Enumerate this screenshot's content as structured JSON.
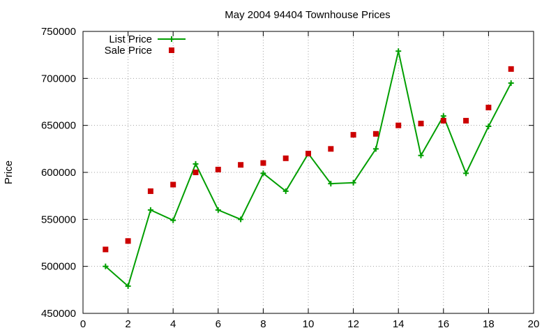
{
  "chart_data": {
    "type": "line",
    "title": "May 2004 94404 Townhouse Prices",
    "xlabel": "",
    "ylabel": "Price",
    "xlim": [
      0,
      20
    ],
    "ylim": [
      450000,
      750000
    ],
    "xticks": [
      0,
      2,
      4,
      6,
      8,
      10,
      12,
      14,
      16,
      18,
      20
    ],
    "yticks": [
      450000,
      500000,
      550000,
      600000,
      650000,
      700000,
      750000
    ],
    "grid": true,
    "legend_position": "top-left",
    "series": [
      {
        "name": "List Price",
        "style": "line-plus",
        "color": "#009e00",
        "x": [
          1,
          2,
          3,
          4,
          5,
          6,
          7,
          8,
          9,
          10,
          11,
          12,
          13,
          14,
          15,
          16,
          17,
          18,
          19
        ],
        "y": [
          500000,
          479000,
          560000,
          549000,
          609000,
          560000,
          550000,
          599000,
          580000,
          620000,
          588000,
          589000,
          625000,
          729000,
          618000,
          660000,
          599000,
          649000,
          695000
        ]
      },
      {
        "name": "Sale Price",
        "style": "square-points",
        "color": "#cc0000",
        "x": [
          1,
          2,
          3,
          4,
          5,
          6,
          7,
          8,
          9,
          10,
          11,
          12,
          13,
          14,
          15,
          16,
          17,
          18,
          19
        ],
        "y": [
          518000,
          527000,
          580000,
          587000,
          600000,
          603000,
          608000,
          610000,
          615000,
          620000,
          625000,
          640000,
          641000,
          650000,
          652000,
          655000,
          655000,
          669000,
          710000
        ]
      }
    ]
  }
}
